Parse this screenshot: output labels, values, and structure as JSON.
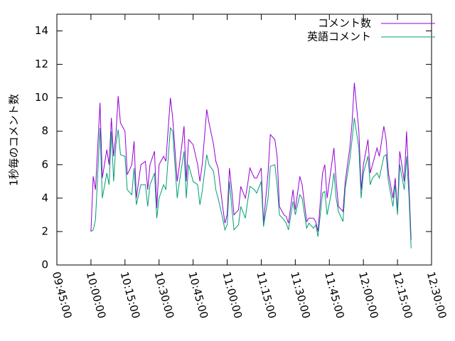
{
  "chart_data": {
    "type": "line",
    "ylabel": "1秒毎のコメント数",
    "x": [
      "10:00:00",
      "10:01:00",
      "10:02:00",
      "10:04:00",
      "10:05:00",
      "10:07:00",
      "10:08:00",
      "10:09:00",
      "10:10:00",
      "10:11:00",
      "10:12:00",
      "10:13:00",
      "10:15:00",
      "10:16:00",
      "10:18:00",
      "10:19:00",
      "10:20:00",
      "10:22:00",
      "10:24:00",
      "10:25:00",
      "10:26:00",
      "10:28:00",
      "10:29:00",
      "10:30:00",
      "10:32:00",
      "10:33:00",
      "10:35:00",
      "10:36:00",
      "10:38:00",
      "10:39:00",
      "10:41:00",
      "10:42:00",
      "10:43:00",
      "10:45:00",
      "10:47:00",
      "10:48:00",
      "10:49:00",
      "10:51:00",
      "10:52:00",
      "10:54:00",
      "10:55:00",
      "10:56:00",
      "10:58:00",
      "10:59:00",
      "11:00:00",
      "11:01:00",
      "11:02:00",
      "11:03:00",
      "11:05:00",
      "11:06:00",
      "11:08:00",
      "11:09:00",
      "11:10:00",
      "11:12:00",
      "11:13:00",
      "11:15:00",
      "11:16:00",
      "11:18:00",
      "11:19:00",
      "11:21:00",
      "11:22:00",
      "11:23:00",
      "11:25:00",
      "11:26:00",
      "11:27:00",
      "11:29:00",
      "11:30:00",
      "11:32:00",
      "11:33:00",
      "11:35:00",
      "11:36:00",
      "11:38:00",
      "11:39:00",
      "11:40:00",
      "11:42:00",
      "11:43:00",
      "11:44:00",
      "11:46:00",
      "11:47:00",
      "11:48:00",
      "11:49:00",
      "11:51:00",
      "11:52:00",
      "11:54:00",
      "11:55:00",
      "11:56:00",
      "11:58:00",
      "11:59:00",
      "12:00:00",
      "12:02:00",
      "12:03:00",
      "12:04:00",
      "12:06:00",
      "12:07:00",
      "12:09:00",
      "12:10:00",
      "12:11:00",
      "12:13:00",
      "12:14:00",
      "12:15:00",
      "12:16:00",
      "12:18:00",
      "12:19:00",
      "12:20:00",
      "12:21:00"
    ],
    "series": [
      {
        "name": "コメント数",
        "color": "#9400d3",
        "values": [
          2.0,
          5.3,
          4.5,
          9.7,
          5.2,
          6.9,
          6.0,
          8.8,
          6.5,
          7.8,
          10.1,
          8.5,
          8.0,
          5.4,
          6.0,
          7.4,
          4.0,
          6.0,
          6.2,
          4.5,
          6.0,
          6.8,
          3.4,
          6.0,
          6.5,
          6.2,
          10.0,
          8.8,
          5.0,
          6.0,
          8.3,
          5.0,
          7.5,
          7.2,
          6.0,
          5.0,
          6.0,
          9.3,
          8.5,
          7.2,
          6.2,
          5.8,
          3.5,
          2.5,
          3.0,
          5.8,
          4.5,
          3.0,
          3.3,
          4.7,
          4.0,
          4.8,
          5.8,
          5.2,
          5.2,
          5.8,
          2.5,
          5.5,
          7.8,
          7.5,
          6.5,
          3.5,
          3.0,
          2.9,
          2.5,
          4.5,
          3.3,
          5.3,
          4.8,
          2.6,
          2.8,
          2.8,
          2.6,
          2.0,
          5.5,
          6.0,
          4.0,
          6.0,
          7.0,
          5.0,
          3.5,
          3.2,
          5.0,
          7.0,
          8.5,
          10.9,
          8.0,
          4.5,
          6.0,
          7.5,
          5.5,
          6.0,
          7.0,
          6.5,
          8.3,
          7.5,
          5.5,
          4.0,
          5.2,
          3.2,
          6.8,
          5.0,
          8.0,
          5.0,
          1.5
        ]
      },
      {
        "name": "英語コメント",
        "color": "#009e73",
        "values": [
          2.0,
          2.1,
          2.7,
          8.2,
          4.0,
          5.5,
          4.8,
          8.0,
          5.0,
          7.2,
          8.1,
          6.6,
          6.5,
          4.5,
          4.2,
          5.8,
          3.6,
          4.8,
          4.8,
          3.5,
          4.8,
          5.5,
          2.8,
          4.0,
          4.8,
          4.5,
          8.2,
          8.0,
          4.0,
          5.0,
          6.8,
          4.0,
          6.0,
          5.0,
          4.8,
          3.6,
          4.4,
          6.6,
          6.0,
          5.6,
          4.5,
          4.0,
          2.8,
          2.1,
          2.4,
          5.0,
          3.5,
          2.1,
          2.4,
          3.5,
          2.8,
          3.8,
          4.7,
          4.5,
          4.3,
          5.0,
          2.3,
          4.0,
          5.9,
          6.0,
          4.8,
          3.0,
          2.7,
          2.5,
          2.1,
          3.8,
          3.0,
          4.2,
          4.0,
          2.2,
          2.5,
          2.2,
          2.4,
          1.7,
          4.3,
          4.4,
          3.0,
          4.4,
          5.5,
          4.0,
          3.2,
          2.6,
          4.6,
          6.3,
          7.5,
          8.8,
          7.0,
          4.0,
          5.5,
          6.5,
          4.8,
          5.2,
          5.5,
          5.2,
          6.5,
          6.6,
          5.0,
          3.5,
          4.8,
          3.0,
          6.0,
          4.5,
          6.5,
          4.3,
          1.0
        ]
      }
    ],
    "xlim": [
      "09:45:00",
      "12:30:00"
    ],
    "xticks": [
      "09:45:00",
      "10:00:00",
      "10:15:00",
      "10:30:00",
      "10:45:00",
      "11:00:00",
      "11:15:00",
      "11:30:00",
      "11:45:00",
      "12:00:00",
      "12:15:00",
      "12:30:00"
    ],
    "ylim": [
      0,
      15
    ],
    "yticks": [
      0,
      2,
      4,
      6,
      8,
      10,
      12,
      14
    ],
    "legend": "upper right"
  }
}
